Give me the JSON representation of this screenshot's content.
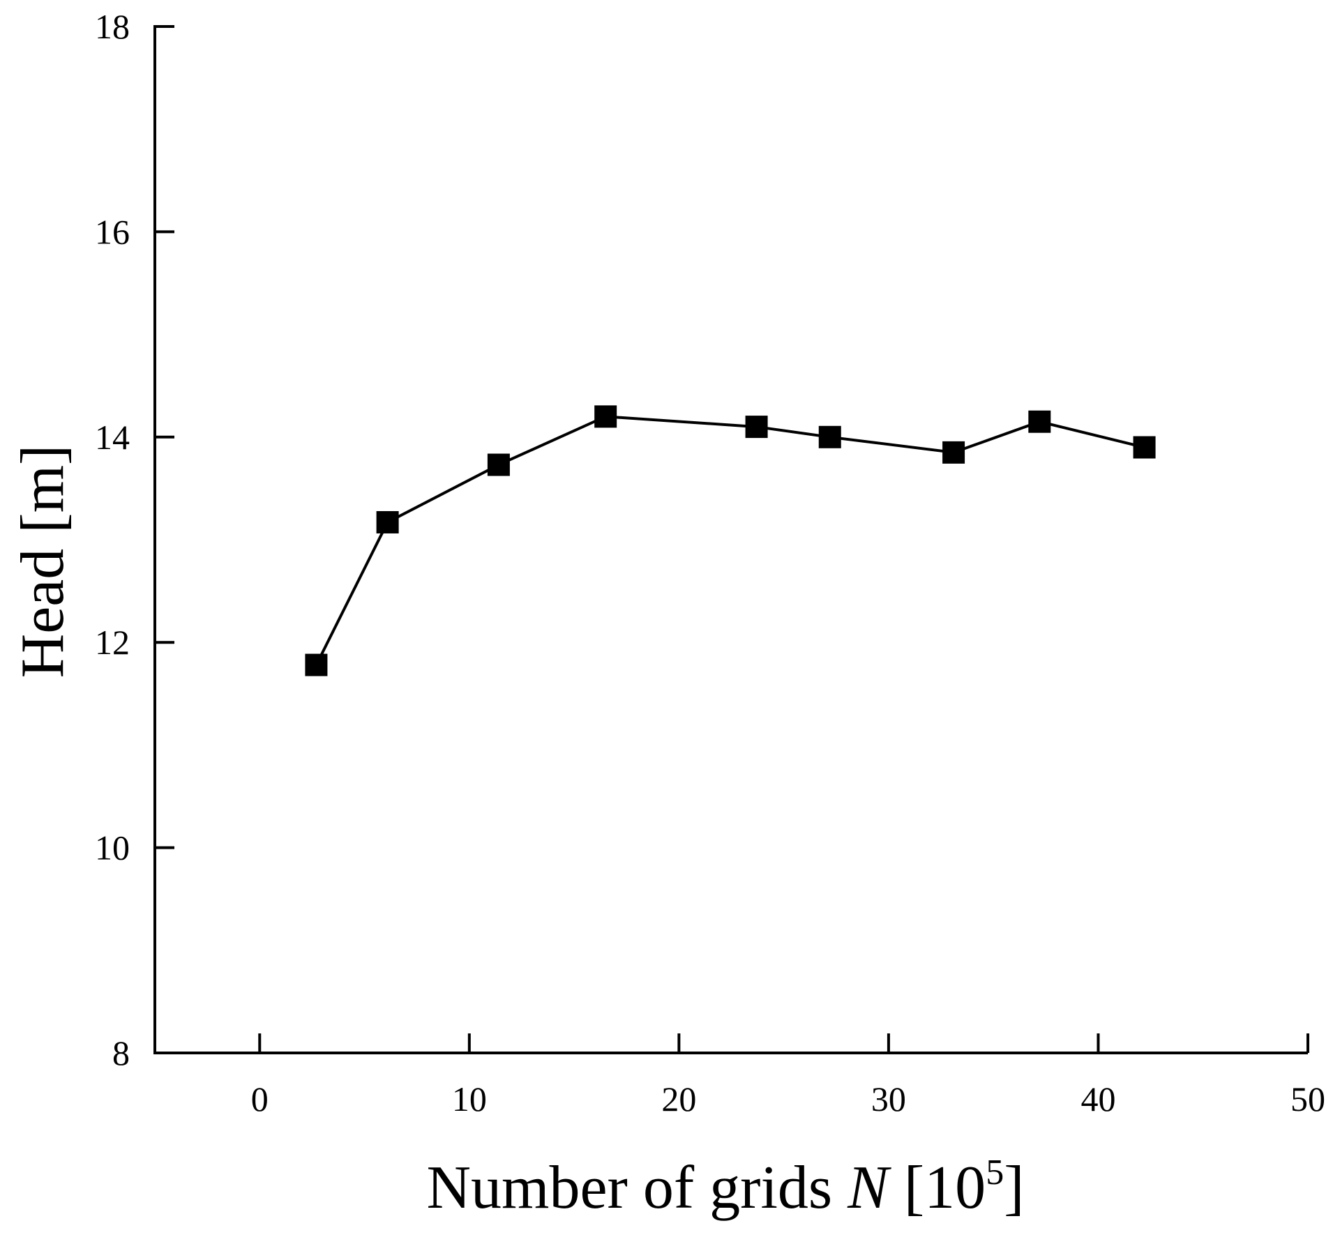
{
  "chart_data": {
    "type": "line",
    "title": "",
    "xlabel": "Number of grids",
    "xlabel_variable": "N",
    "xlabel_unit_open": "[10",
    "xlabel_unit_exp": "5",
    "xlabel_unit_close": "]",
    "ylabel": "Head [m]",
    "xlim": [
      -5,
      50
    ],
    "ylim": [
      8,
      18
    ],
    "xticks": [
      0,
      10,
      20,
      30,
      40,
      50
    ],
    "yticks": [
      8,
      10,
      12,
      14,
      16,
      18
    ],
    "grid": false,
    "legend": "none",
    "marker": "square",
    "color": "#000000",
    "series": [
      {
        "x": [
          2.7,
          6.1,
          11.4,
          16.5,
          23.7,
          27.2,
          33.1,
          37.2,
          42.2
        ],
        "y": [
          11.78,
          13.17,
          13.73,
          14.2,
          14.1,
          14.0,
          13.85,
          14.15,
          13.9
        ]
      }
    ]
  }
}
